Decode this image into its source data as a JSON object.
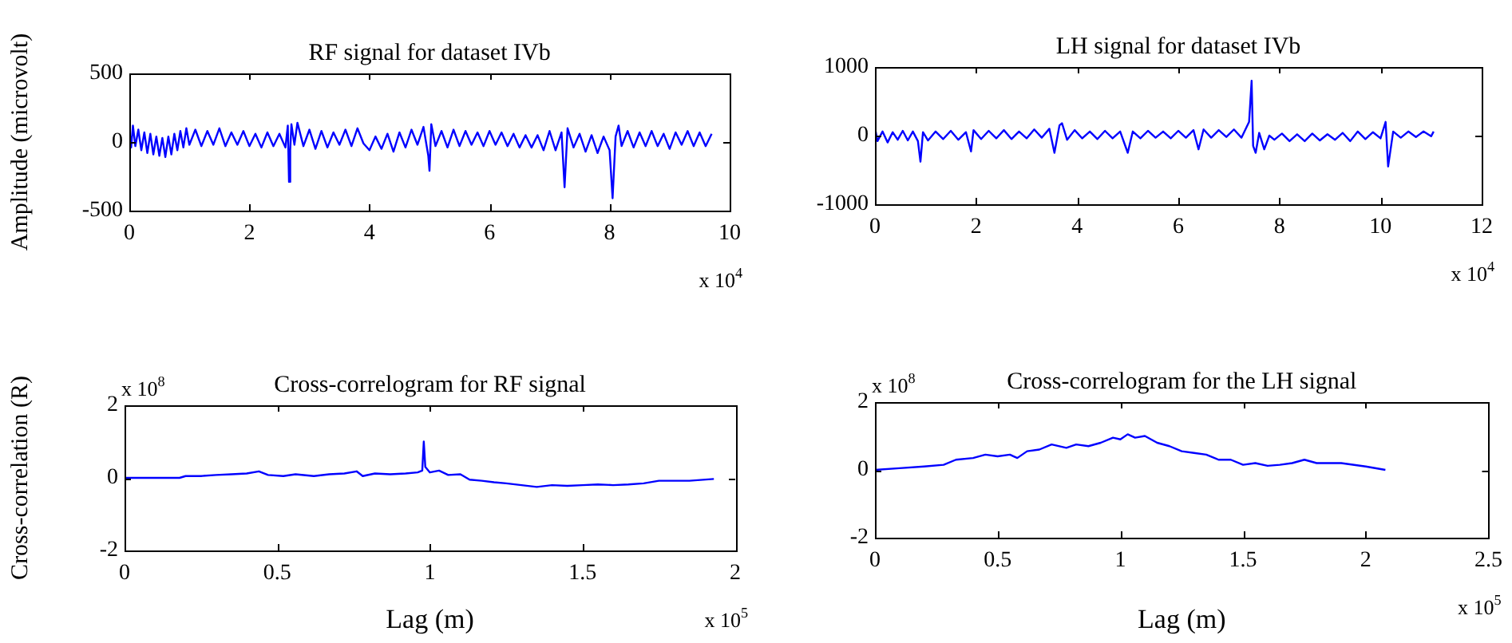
{
  "chart_data": [
    {
      "type": "line",
      "title": "RF signal for dataset IVb",
      "ylabel": "Amplitude (microvolt)",
      "color": "#0000ff",
      "xlim": [
        0,
        10
      ],
      "ylim": [
        -500,
        500
      ],
      "xticks": [
        0,
        2,
        4,
        6,
        8,
        10
      ],
      "yticks": [
        -500,
        0,
        500
      ],
      "annotations": [
        "x 10$^{4}$"
      ],
      "x": [
        0,
        0.03,
        0.06,
        0.1,
        0.15,
        0.2,
        0.25,
        0.3,
        0.35,
        0.4,
        0.45,
        0.5,
        0.55,
        0.6,
        0.65,
        0.7,
        0.75,
        0.8,
        0.85,
        0.9,
        0.95,
        1,
        1.1,
        1.2,
        1.3,
        1.4,
        1.5,
        1.6,
        1.7,
        1.8,
        1.9,
        2,
        2.1,
        2.2,
        2.3,
        2.4,
        2.5,
        2.6,
        2.64,
        2.66,
        2.68,
        2.7,
        2.75,
        2.8,
        2.9,
        3,
        3.1,
        3.2,
        3.3,
        3.4,
        3.5,
        3.6,
        3.7,
        3.8,
        3.9,
        4,
        4.1,
        4.2,
        4.3,
        4.4,
        4.5,
        4.6,
        4.7,
        4.8,
        4.9,
        4.98,
        5,
        5.03,
        5.1,
        5.2,
        5.3,
        5.4,
        5.5,
        5.6,
        5.7,
        5.8,
        5.9,
        6,
        6.1,
        6.2,
        6.3,
        6.4,
        6.5,
        6.6,
        6.7,
        6.8,
        6.9,
        7,
        7.1,
        7.2,
        7.25,
        7.3,
        7.4,
        7.5,
        7.6,
        7.7,
        7.8,
        7.9,
        8,
        8.05,
        8.1,
        8.15,
        8.2,
        8.3,
        8.4,
        8.5,
        8.6,
        8.7,
        8.8,
        8.9,
        9,
        9.1,
        9.2,
        9.3,
        9.4,
        9.5,
        9.6,
        9.7
      ],
      "values": [
        100,
        -40,
        120,
        -30,
        90,
        -60,
        70,
        -80,
        60,
        -90,
        40,
        -100,
        30,
        -110,
        40,
        -90,
        60,
        -60,
        80,
        -40,
        100,
        -20,
        90,
        -30,
        80,
        -20,
        100,
        -30,
        70,
        -20,
        80,
        -30,
        60,
        -40,
        70,
        -30,
        60,
        -40,
        120,
        -290,
        -60,
        130,
        -20,
        140,
        -30,
        90,
        -50,
        80,
        -40,
        70,
        -20,
        90,
        -30,
        100,
        -10,
        -60,
        40,
        -50,
        60,
        -70,
        70,
        -40,
        90,
        -20,
        110,
        -100,
        -210,
        130,
        -30,
        80,
        -40,
        90,
        -30,
        80,
        -20,
        70,
        -30,
        80,
        -20,
        70,
        -30,
        60,
        -40,
        50,
        -40,
        50,
        -60,
        80,
        -60,
        70,
        -330,
        100,
        -40,
        60,
        -70,
        50,
        -80,
        40,
        -60,
        -410,
        40,
        120,
        -30,
        80,
        -40,
        70,
        -30,
        80,
        -30,
        60,
        -50,
        70,
        -20,
        80,
        -30,
        70,
        -30,
        60
      ]
    },
    {
      "type": "line",
      "title": "LH signal for dataset IVb",
      "color": "#0000ff",
      "xlim": [
        0,
        12
      ],
      "ylim": [
        -1000,
        1000
      ],
      "xticks": [
        0,
        2,
        4,
        6,
        8,
        10,
        12
      ],
      "yticks": [
        -1000,
        0,
        1000
      ],
      "annotations": [
        "x 10$^{4}$"
      ],
      "x": [
        0,
        0.05,
        0.15,
        0.25,
        0.35,
        0.45,
        0.55,
        0.65,
        0.75,
        0.85,
        0.9,
        0.95,
        1.05,
        1.2,
        1.35,
        1.5,
        1.65,
        1.8,
        1.9,
        1.95,
        2.1,
        2.25,
        2.4,
        2.55,
        2.7,
        2.85,
        3,
        3.15,
        3.3,
        3.45,
        3.55,
        3.65,
        3.7,
        3.8,
        3.95,
        4.1,
        4.25,
        4.4,
        4.55,
        4.7,
        4.85,
        5,
        5.1,
        5.25,
        5.4,
        5.55,
        5.7,
        5.85,
        6,
        6.15,
        6.3,
        6.4,
        6.5,
        6.65,
        6.8,
        6.95,
        7.1,
        7.25,
        7.4,
        7.45,
        7.48,
        7.53,
        7.6,
        7.7,
        7.8,
        7.9,
        8.05,
        8.2,
        8.35,
        8.5,
        8.65,
        8.8,
        8.95,
        9.1,
        9.25,
        9.4,
        9.55,
        9.7,
        9.85,
        10,
        10.1,
        10.15,
        10.25,
        10.4,
        10.55,
        10.7,
        10.85,
        11,
        11.05
      ],
      "values": [
        120,
        -80,
        60,
        -100,
        50,
        -60,
        70,
        -70,
        60,
        -80,
        -380,
        50,
        -70,
        60,
        -50,
        70,
        -60,
        50,
        -230,
        80,
        -50,
        70,
        -40,
        80,
        -50,
        60,
        -40,
        90,
        -30,
        100,
        -250,
        150,
        180,
        -60,
        80,
        -40,
        60,
        -50,
        70,
        -40,
        60,
        -250,
        60,
        -40,
        70,
        -30,
        60,
        -40,
        70,
        -30,
        80,
        -200,
        90,
        -30,
        80,
        -20,
        90,
        -30,
        200,
        800,
        -150,
        -250,
        40,
        -200,
        0,
        -60,
        30,
        -80,
        20,
        -80,
        30,
        -70,
        20,
        -60,
        40,
        -80,
        60,
        -50,
        50,
        -40,
        200,
        -450,
        60,
        -30,
        60,
        -20,
        60,
        -10,
        60
      ]
    },
    {
      "type": "line",
      "title": "Cross-correlogram for RF signal",
      "xlabel": "Lag (m)",
      "ylabel": "Cross-correlation (R)",
      "color": "#0000ff",
      "xlim": [
        0,
        2
      ],
      "ylim": [
        -2,
        2
      ],
      "xticks": [
        0,
        0.5,
        1,
        1.5,
        2
      ],
      "yticks": [
        -2,
        0,
        2
      ],
      "annotations": [
        "x 10$^{5}$",
        "x 10$^{8}$"
      ],
      "x": [
        0,
        0.18,
        0.2,
        0.25,
        0.3,
        0.35,
        0.4,
        0.44,
        0.47,
        0.52,
        0.56,
        0.62,
        0.67,
        0.72,
        0.76,
        0.78,
        0.82,
        0.87,
        0.92,
        0.96,
        0.975,
        0.98,
        0.985,
        1,
        1.03,
        1.06,
        1.1,
        1.13,
        1.17,
        1.21,
        1.25,
        1.3,
        1.35,
        1.4,
        1.45,
        1.5,
        1.55,
        1.6,
        1.65,
        1.7,
        1.75,
        1.85,
        1.93
      ],
      "values": [
        0,
        0,
        0.05,
        0.05,
        0.08,
        0.1,
        0.12,
        0.18,
        0.08,
        0.05,
        0.1,
        0.05,
        0.1,
        0.12,
        0.18,
        0.05,
        0.12,
        0.1,
        0.12,
        0.15,
        0.2,
        1,
        0.3,
        0.15,
        0.2,
        0.08,
        0.1,
        -0.05,
        -0.08,
        -0.12,
        -0.15,
        -0.2,
        -0.25,
        -0.2,
        -0.22,
        -0.2,
        -0.18,
        -0.2,
        -0.18,
        -0.15,
        -0.08,
        -0.08,
        -0.03
      ]
    },
    {
      "type": "line",
      "title": "Cross-correlogram for the LH signal",
      "xlabel": "Lag (m)",
      "color": "#0000ff",
      "xlim": [
        0,
        2.5
      ],
      "ylim": [
        -2,
        2
      ],
      "xticks": [
        0,
        0.5,
        1,
        1.5,
        2,
        2.5
      ],
      "yticks": [
        -2,
        0,
        2
      ],
      "annotations": [
        "x 10$^{5}$",
        "x 10$^{8}$"
      ],
      "x": [
        0,
        0.1,
        0.2,
        0.28,
        0.33,
        0.4,
        0.45,
        0.5,
        0.55,
        0.58,
        0.62,
        0.67,
        0.72,
        0.78,
        0.82,
        0.87,
        0.92,
        0.97,
        1,
        1.03,
        1.06,
        1.1,
        1.15,
        1.2,
        1.25,
        1.3,
        1.35,
        1.4,
        1.45,
        1.5,
        1.55,
        1.6,
        1.65,
        1.7,
        1.75,
        1.8,
        1.9,
        2,
        2.08
      ],
      "values": [
        0,
        0.05,
        0.1,
        0.15,
        0.3,
        0.35,
        0.45,
        0.4,
        0.45,
        0.35,
        0.55,
        0.6,
        0.75,
        0.65,
        0.75,
        0.7,
        0.8,
        0.95,
        0.9,
        1.05,
        0.95,
        1,
        0.8,
        0.7,
        0.55,
        0.5,
        0.45,
        0.3,
        0.3,
        0.15,
        0.2,
        0.12,
        0.15,
        0.2,
        0.3,
        0.2,
        0.2,
        0.1,
        0
      ]
    }
  ]
}
